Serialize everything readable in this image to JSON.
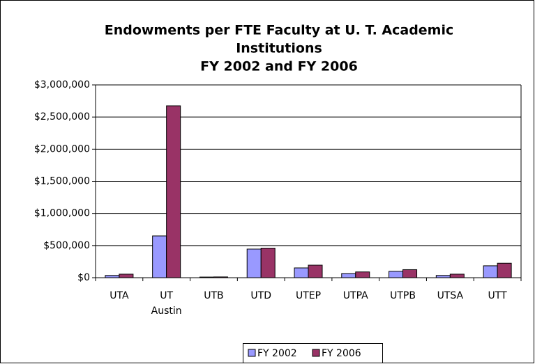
{
  "chart_data": {
    "type": "bar",
    "title": [
      "Endowments per FTE Faculty at U. T. Academic",
      "Institutions",
      "FY 2002 and FY 2006"
    ],
    "categories": [
      "UTA",
      "UT Austin",
      "UTB",
      "UTD",
      "UTEP",
      "UTPA",
      "UTPB",
      "UTSA",
      "UTT"
    ],
    "series": [
      {
        "name": "FY 2002",
        "color": "#9999ff",
        "values": [
          35000,
          650000,
          10000,
          445000,
          152000,
          65000,
          100000,
          35000,
          185000
        ]
      },
      {
        "name": "FY 2006",
        "color": "#993366",
        "values": [
          55000,
          2675000,
          12000,
          460000,
          195000,
          90000,
          125000,
          55000,
          225000
        ]
      }
    ],
    "ylim": [
      0,
      3000000
    ],
    "yticks": [
      {
        "value": 0,
        "label": "$0"
      },
      {
        "value": 500000,
        "label": "$500,000"
      },
      {
        "value": 1000000,
        "label": "$1,000,000"
      },
      {
        "value": 1500000,
        "label": "$1,500,000"
      },
      {
        "value": 2000000,
        "label": "$2,000,000"
      },
      {
        "value": 2500000,
        "label": "$2,500,000"
      },
      {
        "value": 3000000,
        "label": "$3,000,000"
      }
    ],
    "grid": true,
    "legend": "bottom"
  }
}
